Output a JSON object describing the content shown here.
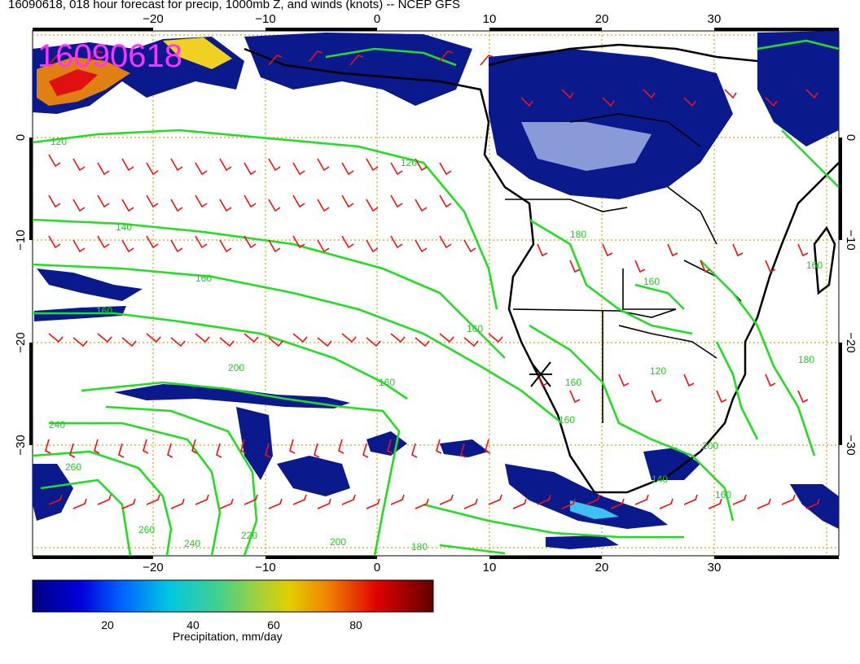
{
  "title": "16090618, 018 hour forecast for precip, 1000mb Z, and winds (knots) -- NCEP GFS",
  "stamp": "16090618",
  "axes": {
    "lon_ticks": [
      "−20",
      "−10",
      "0",
      "10",
      "20",
      "30"
    ],
    "lat_ticks": [
      "0",
      "−10",
      "−20",
      "−30"
    ]
  },
  "contour_labels": [
    "120",
    "120",
    "140",
    "160",
    "160",
    "160",
    "160",
    "160",
    "160",
    "180",
    "180",
    "180",
    "200",
    "200",
    "200",
    "220",
    "240",
    "240",
    "260",
    "260",
    "160",
    "140",
    "160",
    "120",
    "160"
  ],
  "colorbar": {
    "ticks": [
      "20",
      "40",
      "60",
      "80"
    ],
    "title": "Precipitation, mm/day"
  },
  "colors": {
    "precip_low": "#0a1a8c",
    "contour": "#22dd22",
    "wind": "#ee1111",
    "stamp": "#ff33ff",
    "coast": "#000000",
    "grid": "#d8a020"
  }
}
